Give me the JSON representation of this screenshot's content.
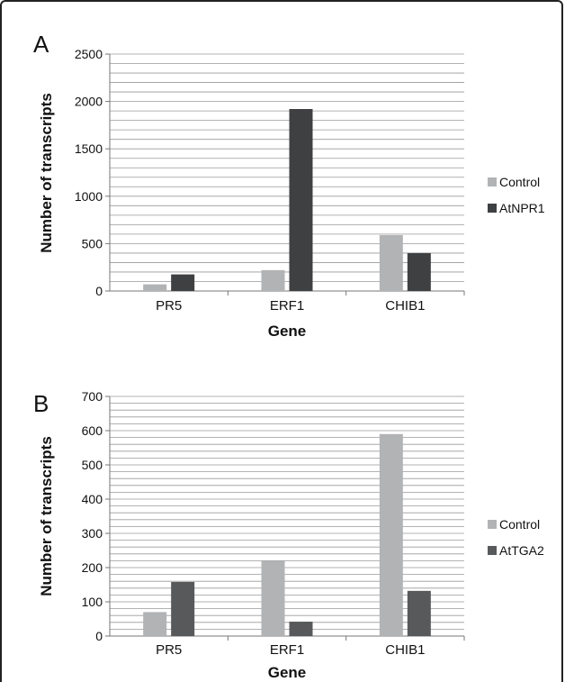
{
  "chart_data": [
    {
      "type": "bar",
      "panel": "A",
      "categories": [
        "PR5",
        "ERF1",
        "CHIB1"
      ],
      "series": [
        {
          "name": "Control",
          "values": [
            70,
            220,
            590
          ],
          "color": "#b2b3b5"
        },
        {
          "name": "AtNPR1",
          "values": [
            175,
            1920,
            400
          ],
          "color": "#3f4042"
        }
      ],
      "xlabel": "Gene",
      "ylabel": "Number of transcripts",
      "ylim": [
        0,
        2500
      ],
      "yticks": [
        0,
        500,
        1000,
        1500,
        2000,
        2500
      ],
      "minor_step": 100,
      "grid": true,
      "legend": "right"
    },
    {
      "type": "bar",
      "panel": "B",
      "categories": [
        "PR5",
        "ERF1",
        "CHIB1"
      ],
      "series": [
        {
          "name": "Control",
          "values": [
            70,
            220,
            590
          ],
          "color": "#b2b3b5"
        },
        {
          "name": "AtTGA2",
          "values": [
            158,
            42,
            132
          ],
          "color": "#58595b"
        }
      ],
      "xlabel": "Gene",
      "ylabel": "Number of transcripts",
      "ylim": [
        0,
        700
      ],
      "yticks": [
        0,
        100,
        200,
        300,
        400,
        500,
        600,
        700
      ],
      "minor_step": 20,
      "grid": true,
      "legend": "right"
    }
  ]
}
